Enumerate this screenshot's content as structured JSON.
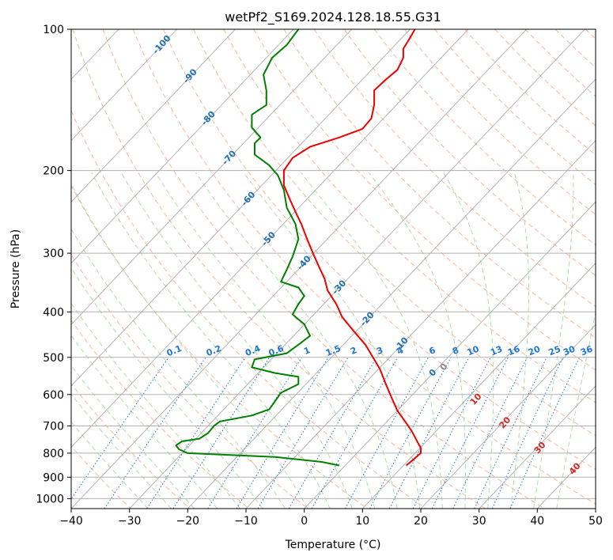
{
  "chart_data": {
    "type": "line",
    "title": "wetPf2_S169.2024.128.18.55.G31",
    "xlabel": "Temperature (°C)",
    "ylabel": "Pressure (hPa)",
    "xlim": [
      -40,
      50
    ],
    "ylim": [
      1050,
      100
    ],
    "yscale": "log",
    "grid": true,
    "x_ticks": [
      -40,
      -30,
      -20,
      -10,
      0,
      10,
      20,
      30,
      40,
      50
    ],
    "x_tick_labels": [
      "−40",
      "−30",
      "−20",
      "−10",
      "0",
      "10",
      "20",
      "30",
      "40",
      "50"
    ],
    "y_ticks": [
      100,
      200,
      300,
      400,
      500,
      600,
      700,
      800,
      900,
      1000
    ],
    "y_tick_labels": [
      "100",
      "200",
      "300",
      "400",
      "500",
      "600",
      "700",
      "800",
      "900",
      "1000"
    ],
    "colors": {
      "temperature": "#ee0000",
      "dewpoint": "#008000",
      "isotherm": "#999999",
      "dry_adiabat": "#f4a582",
      "moist_adiabat": "#a6d8a0",
      "mixing_ratio": "#1f77d4",
      "isotherm_label": "#1f6eb0",
      "moist_label": "#d62728"
    },
    "series": [
      {
        "key": "temperature",
        "points": [
          [
            17.5,
            850
          ],
          [
            18.0,
            840
          ],
          [
            19.0,
            820
          ],
          [
            20.0,
            800
          ],
          [
            20.0,
            780
          ],
          [
            19.5,
            760
          ],
          [
            18.5,
            720
          ],
          [
            17.5,
            690
          ],
          [
            16.0,
            650
          ],
          [
            15.0,
            610
          ],
          [
            14.0,
            570
          ],
          [
            13.0,
            530
          ],
          [
            12.0,
            505
          ],
          [
            10.5,
            470
          ],
          [
            8.5,
            440
          ],
          [
            6.5,
            410
          ],
          [
            5.5,
            385
          ],
          [
            4.0,
            360
          ],
          [
            3.5,
            340
          ],
          [
            2.5,
            320
          ],
          [
            1.5,
            300
          ],
          [
            0.5,
            280
          ],
          [
            -0.5,
            260
          ],
          [
            -1.5,
            245
          ],
          [
            -2.5,
            230
          ],
          [
            -3.5,
            215
          ],
          [
            -3.5,
            200
          ],
          [
            -2.0,
            188
          ],
          [
            1.0,
            178
          ],
          [
            6.0,
            170
          ],
          [
            10.0,
            163
          ],
          [
            11.5,
            155
          ],
          [
            12.0,
            145
          ],
          [
            12.0,
            135
          ],
          [
            14.0,
            128
          ],
          [
            16.0,
            122
          ],
          [
            17.0,
            115
          ],
          [
            17.0,
            110
          ],
          [
            18.0,
            105
          ],
          [
            19.0,
            100
          ]
        ]
      },
      {
        "key": "dewpoint",
        "points": [
          [
            6.0,
            850
          ],
          [
            3.0,
            835
          ],
          [
            -5.0,
            815
          ],
          [
            -15.0,
            805
          ],
          [
            -20.0,
            800
          ],
          [
            -21.5,
            785
          ],
          [
            -22.0,
            770
          ],
          [
            -21.0,
            755
          ],
          [
            -18.0,
            745
          ],
          [
            -16.5,
            725
          ],
          [
            -15.5,
            700
          ],
          [
            -14.5,
            685
          ],
          [
            -9.0,
            665
          ],
          [
            -6.0,
            645
          ],
          [
            -5.0,
            620
          ],
          [
            -4.0,
            595
          ],
          [
            -1.0,
            570
          ],
          [
            -1.0,
            550
          ],
          [
            -5.0,
            540
          ],
          [
            -9.0,
            525
          ],
          [
            -8.5,
            505
          ],
          [
            -3.0,
            490
          ],
          [
            -1.0,
            470
          ],
          [
            1.0,
            450
          ],
          [
            0.0,
            425
          ],
          [
            -2.0,
            405
          ],
          [
            -1.0,
            385
          ],
          [
            0.0,
            370
          ],
          [
            -1.0,
            355
          ],
          [
            -4.0,
            345
          ],
          [
            -3.0,
            325
          ],
          [
            -2.0,
            305
          ],
          [
            -1.0,
            280
          ],
          [
            -1.5,
            260
          ],
          [
            -3.0,
            240
          ],
          [
            -3.5,
            220
          ],
          [
            -4.5,
            205
          ],
          [
            -6.0,
            195
          ],
          [
            -8.5,
            185
          ],
          [
            -8.5,
            175
          ],
          [
            -7.5,
            170
          ],
          [
            -9.0,
            162
          ],
          [
            -9.0,
            152
          ],
          [
            -6.5,
            145
          ],
          [
            -6.5,
            135
          ],
          [
            -7.0,
            125
          ],
          [
            -5.5,
            115
          ],
          [
            -3.0,
            108
          ],
          [
            -1.0,
            100
          ]
        ]
      }
    ],
    "annotations": {
      "isotherm_labels": [
        {
          "text": "-100",
          "t": -100,
          "p": 108
        },
        {
          "text": "-90",
          "t": -90,
          "p": 126
        },
        {
          "text": "-80",
          "t": -80,
          "p": 155
        },
        {
          "text": "-70",
          "t": -70,
          "p": 188
        },
        {
          "text": "-60",
          "t": -60,
          "p": 230
        },
        {
          "text": "-50",
          "t": -50,
          "p": 280
        },
        {
          "text": "-40",
          "t": -40,
          "p": 315
        },
        {
          "text": "-30",
          "t": -30,
          "p": 355
        },
        {
          "text": "-20",
          "t": -20,
          "p": 415
        },
        {
          "text": "-10",
          "t": -10,
          "p": 470
        },
        {
          "text": "0",
          "t": 0,
          "p": 540
        }
      ],
      "mixing_ratio_labels": [
        {
          "text": "0.1",
          "t": -22.3
        },
        {
          "text": "0.2",
          "t": -15.5
        },
        {
          "text": "0.4",
          "t": -8.8
        },
        {
          "text": "0.6",
          "t": -4.8
        },
        {
          "text": "1",
          "t": 0.5
        },
        {
          "text": "1.5",
          "t": 5.0
        },
        {
          "text": "2",
          "t": 8.5
        },
        {
          "text": "3",
          "t": 13.0
        },
        {
          "text": "4",
          "t": 16.5
        },
        {
          "text": "6",
          "t": 22.0
        },
        {
          "text": "8",
          "t": 26.0
        },
        {
          "text": "10",
          "t": 29.0
        },
        {
          "text": "13",
          "t": 33.0
        },
        {
          "text": "16",
          "t": 36.0
        },
        {
          "text": "20",
          "t": 39.5
        },
        {
          "text": "25",
          "t": 43.0
        },
        {
          "text": "30",
          "t": 45.5
        },
        {
          "text": "36",
          "t": 48.5
        }
      ],
      "moist_adiabat_labels": [
        {
          "text": "10",
          "t": 29.5,
          "p": 615
        },
        {
          "text": "20",
          "t": 34.5,
          "p": 690
        },
        {
          "text": "30",
          "t": 40.5,
          "p": 780
        },
        {
          "text": "40",
          "t": 46.5,
          "p": 865
        }
      ]
    }
  }
}
